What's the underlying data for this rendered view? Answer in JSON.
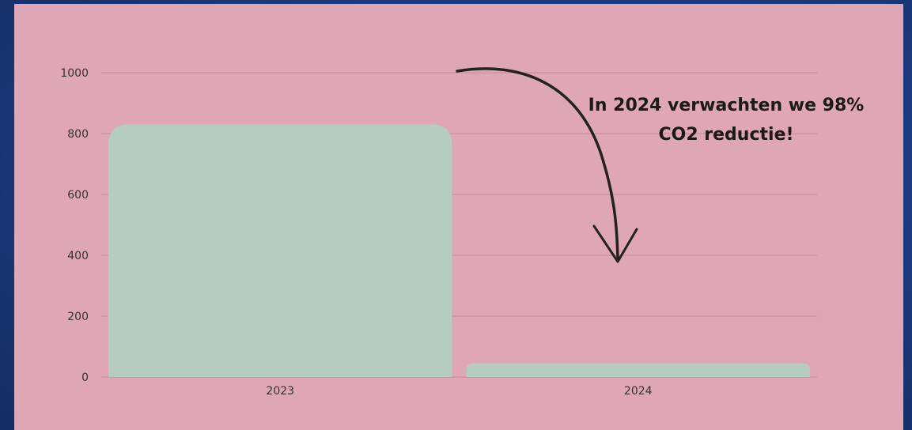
{
  "chart_data": {
    "type": "bar",
    "categories": [
      "2023",
      "2024"
    ],
    "values": [
      830,
      45
    ],
    "yticks": [
      0,
      200,
      400,
      600,
      800,
      1000
    ],
    "ylim": [
      0,
      1000
    ],
    "title": "",
    "xlabel": "",
    "ylabel": "",
    "grid": true,
    "annotation": [
      "In 2024 verwachten we 98%",
      "CO2 reductie!"
    ]
  },
  "colors": {
    "background": "#1a3a7c",
    "panel": "#dfa7b5",
    "bar": "#b5cdc0",
    "gridline": "#c98e9d",
    "arrow": "#222222"
  }
}
